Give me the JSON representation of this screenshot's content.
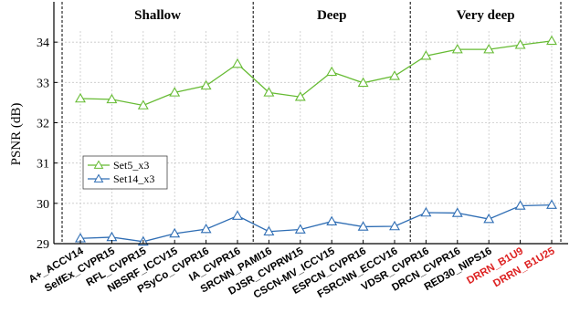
{
  "chart_data": {
    "type": "line",
    "ylabel": "PSNR (dB)",
    "xlabel": "",
    "title": "",
    "ylim": [
      29,
      35
    ],
    "yticks": [
      29,
      30,
      31,
      32,
      33,
      34
    ],
    "grid": true,
    "legend_position": "left-middle",
    "categories": [
      "A+_ACCV14",
      "SelfEx_CVPR15",
      "RFL_CVPR15",
      "NBSRF_ICCV15",
      "PSyCo_CVPR16",
      "IA_CVPR16",
      "SRCNN_PAMI16",
      "DJSR_CVPRW15",
      "CSCN-MV_ICCV15",
      "ESPCN_CVPR16",
      "FSRCNN_ECCV16",
      "VDSR_CVPR16",
      "DRCN_CVPR16",
      "RED30_NIPS16",
      "DRRN_B1U9",
      "DRRN_B1U25"
    ],
    "highlight_categories": [
      "DRRN_B1U9",
      "DRRN_B1U25"
    ],
    "groups": [
      {
        "label": "Shallow",
        "start": 0,
        "end": 5
      },
      {
        "label": "Deep",
        "start": 6,
        "end": 10
      },
      {
        "label": "Very deep",
        "start": 11,
        "end": 15
      }
    ],
    "series": [
      {
        "name": "Set5_x3",
        "color": "#66bb33",
        "marker": "triangle",
        "values": [
          32.6,
          32.58,
          32.43,
          32.75,
          32.92,
          33.46,
          32.75,
          32.64,
          33.26,
          32.99,
          33.16,
          33.66,
          33.82,
          33.82,
          33.93,
          34.03
        ]
      },
      {
        "name": "Set14_x3",
        "color": "#2e6db4",
        "marker": "triangle",
        "values": [
          29.13,
          29.16,
          29.05,
          29.25,
          29.36,
          29.69,
          29.3,
          29.35,
          29.55,
          29.42,
          29.43,
          29.77,
          29.76,
          29.61,
          29.94,
          29.96
        ]
      }
    ]
  },
  "colors": {
    "highlight_label": "#dd2222",
    "axis": "#000000",
    "grid": "#c8c8c8"
  }
}
